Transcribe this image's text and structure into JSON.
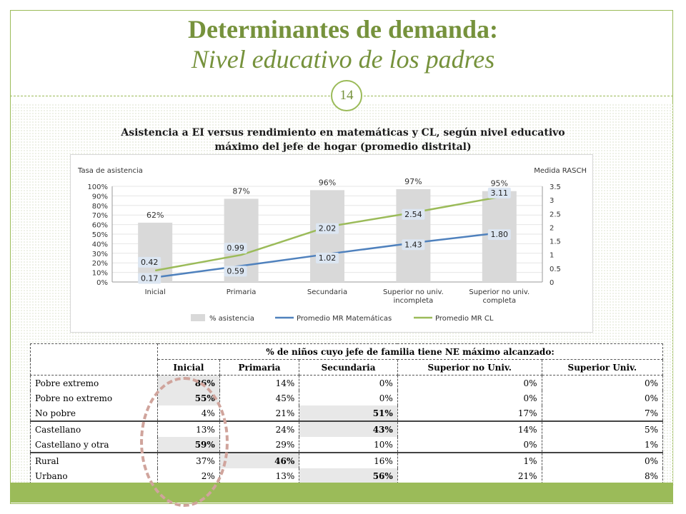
{
  "slide": {
    "title": "Determinantes de demanda:",
    "subtitle": "Nivel educativo de los padres",
    "page_number": "14",
    "chart_caption": "Asistencia a EI versus rendimiento en matemáticas y CL, según nivel educativo máximo del jefe de hogar (promedio distrital)"
  },
  "colors": {
    "accent": "#9bbb59",
    "title": "#76923c",
    "bar": "#d9d9d9",
    "math": "#4f81bd",
    "cl": "#9bbb59",
    "highlight": "#e8e8e8"
  },
  "chart_data": {
    "type": "bar",
    "categories": [
      "Inicial",
      "Primaria",
      "Secundaria",
      "Superior no univ. incompleta",
      "Superior no univ. completa"
    ],
    "category_lines": [
      [
        "Inicial"
      ],
      [
        "Primaria"
      ],
      [
        "Secundaria"
      ],
      [
        "Superior no univ.",
        "incompleta"
      ],
      [
        "Superior no univ.",
        "completa"
      ]
    ],
    "ylabel_left": "Tasa de asistencia",
    "ylabel_right": "Medida RASCH",
    "ylim_left": [
      0,
      100
    ],
    "ylim_right": [
      0,
      3.5
    ],
    "y_ticks_left": [
      "0%",
      "10%",
      "20%",
      "30%",
      "40%",
      "50%",
      "60%",
      "70%",
      "80%",
      "90%",
      "100%"
    ],
    "y_ticks_right": [
      "0",
      "0.5",
      "1",
      "1.5",
      "2",
      "2.5",
      "3",
      "3.5"
    ],
    "legend_position": "bottom",
    "series": [
      {
        "name": "% asistencia",
        "kind": "bar",
        "axis": "left",
        "values": [
          62,
          87,
          96,
          97,
          95
        ],
        "labels": [
          "62%",
          "87%",
          "96%",
          "97%",
          "95%"
        ]
      },
      {
        "name": "Promedio MR Matemáticas",
        "kind": "line",
        "axis": "right",
        "values": [
          0.17,
          0.59,
          1.02,
          1.43,
          1.8
        ],
        "labels": [
          "0.17",
          "0.59",
          "1.02",
          "1.43",
          "1.80"
        ]
      },
      {
        "name": "Promedio MR CL",
        "kind": "line",
        "axis": "right",
        "values": [
          0.42,
          0.99,
          2.02,
          2.54,
          3.11
        ],
        "labels": [
          "0.42",
          "0.99",
          "2.02",
          "2.54",
          "3.11"
        ]
      }
    ]
  },
  "table": {
    "group_header": "% de niños cuyo jefe de familia tiene NE máximo alcanzado:",
    "columns": [
      "Inicial",
      "Primaria",
      "Secundaria",
      "Superior no Univ.",
      "Superior Univ."
    ],
    "rows": [
      {
        "label": "Pobre extremo",
        "values": [
          "86%",
          "14%",
          "0%",
          "0%",
          "0%"
        ],
        "highlight": 0,
        "group_start": false
      },
      {
        "label": "Pobre no extremo",
        "values": [
          "55%",
          "45%",
          "0%",
          "0%",
          "0%"
        ],
        "highlight": 0,
        "group_start": false
      },
      {
        "label": "No pobre",
        "values": [
          "4%",
          "21%",
          "51%",
          "17%",
          "7%"
        ],
        "highlight": 2,
        "group_start": false
      },
      {
        "label": "Castellano",
        "values": [
          "13%",
          "24%",
          "43%",
          "14%",
          "5%"
        ],
        "highlight": 2,
        "group_start": true
      },
      {
        "label": "Castellano y otra",
        "values": [
          "59%",
          "29%",
          "10%",
          "0%",
          "1%"
        ],
        "highlight": 0,
        "group_start": false
      },
      {
        "label": "Rural",
        "values": [
          "37%",
          "46%",
          "16%",
          "1%",
          "0%"
        ],
        "highlight": 1,
        "group_start": true
      },
      {
        "label": "Urbano",
        "values": [
          "2%",
          "13%",
          "56%",
          "21%",
          "8%"
        ],
        "highlight": 2,
        "group_start": false
      }
    ]
  }
}
